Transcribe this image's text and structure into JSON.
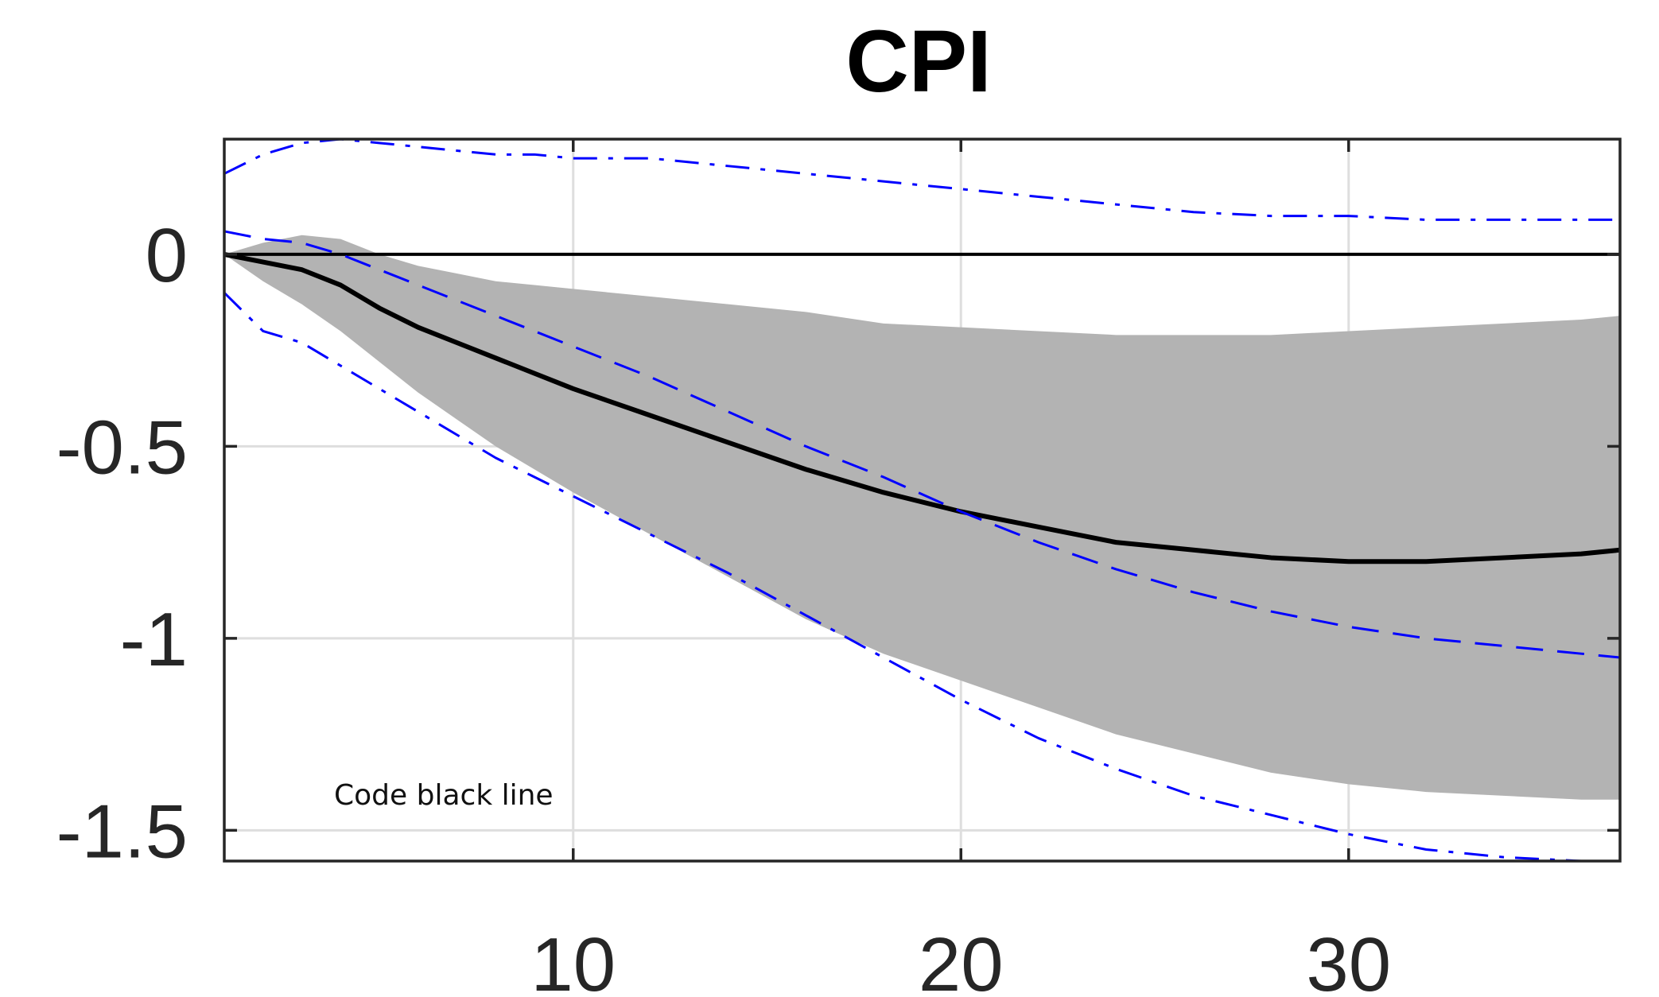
{
  "chart_data": {
    "type": "line",
    "title": "CPI",
    "xlabel": "",
    "ylabel": "",
    "xlim": [
      1,
      37
    ],
    "ylim": [
      -1.58,
      0.3
    ],
    "x_ticks": [
      10,
      20,
      30
    ],
    "y_ticks": [
      0,
      -0.5,
      -1,
      -1.5
    ],
    "x_tick_labels": [
      "10",
      "20",
      "30"
    ],
    "y_tick_labels": [
      "0",
      "-0.5",
      "-1",
      "-1.5"
    ],
    "grid": true,
    "annotation": "Code black line",
    "band": {
      "color": "#b3b3b3",
      "x": [
        1,
        2,
        3,
        4,
        5,
        6,
        7,
        8,
        9,
        10,
        12,
        14,
        16,
        18,
        20,
        22,
        24,
        26,
        28,
        30,
        32,
        34,
        36,
        37
      ],
      "upper": [
        0,
        0.03,
        0.05,
        0.04,
        0.0,
        -0.03,
        -0.05,
        -0.07,
        -0.08,
        -0.09,
        -0.11,
        -0.13,
        -0.15,
        -0.18,
        -0.19,
        -0.2,
        -0.21,
        -0.21,
        -0.21,
        -0.2,
        -0.19,
        -0.18,
        -0.17,
        -0.16
      ],
      "lower": [
        0,
        -0.07,
        -0.13,
        -0.2,
        -0.28,
        -0.36,
        -0.43,
        -0.5,
        -0.56,
        -0.62,
        -0.73,
        -0.84,
        -0.95,
        -1.04,
        -1.11,
        -1.18,
        -1.25,
        -1.3,
        -1.35,
        -1.38,
        -1.4,
        -1.41,
        -1.42,
        -1.42
      ]
    },
    "series": [
      {
        "color": "#000000",
        "style": "solid",
        "x": [
          1,
          2,
          3,
          4,
          5,
          6,
          7,
          8,
          9,
          10,
          12,
          14,
          16,
          18,
          20,
          22,
          24,
          26,
          28,
          30,
          32,
          34,
          36,
          37
        ],
        "values": [
          0,
          -0.02,
          -0.04,
          -0.08,
          -0.14,
          -0.19,
          -0.23,
          -0.27,
          -0.31,
          -0.35,
          -0.42,
          -0.49,
          -0.56,
          -0.62,
          -0.67,
          -0.71,
          -0.75,
          -0.77,
          -0.79,
          -0.8,
          -0.8,
          -0.79,
          -0.78,
          -0.77
        ]
      },
      {
        "color": "#0000ff",
        "style": "dashed",
        "x": [
          1,
          2,
          3,
          4,
          5,
          6,
          7,
          8,
          9,
          10,
          12,
          14,
          16,
          18,
          20,
          22,
          24,
          26,
          28,
          30,
          32,
          34,
          36,
          37
        ],
        "values": [
          0.06,
          0.04,
          0.03,
          0.0,
          -0.04,
          -0.08,
          -0.12,
          -0.16,
          -0.2,
          -0.24,
          -0.32,
          -0.41,
          -0.5,
          -0.58,
          -0.67,
          -0.75,
          -0.82,
          -0.88,
          -0.93,
          -0.97,
          -1.0,
          -1.02,
          -1.04,
          -1.05
        ]
      },
      {
        "color": "#0000ff",
        "style": "dashdot",
        "x": [
          1,
          2,
          3,
          4,
          5,
          6,
          7,
          8,
          9,
          10,
          12,
          14,
          16,
          18,
          20,
          22,
          24,
          26,
          28,
          30,
          32,
          34,
          36,
          37
        ],
        "values": [
          0.21,
          0.26,
          0.29,
          0.3,
          0.29,
          0.28,
          0.27,
          0.26,
          0.26,
          0.25,
          0.25,
          0.23,
          0.21,
          0.19,
          0.17,
          0.15,
          0.13,
          0.11,
          0.1,
          0.1,
          0.09,
          0.09,
          0.09,
          0.09
        ]
      },
      {
        "color": "#0000ff",
        "style": "dashdot",
        "x": [
          1,
          2,
          3,
          4,
          5,
          6,
          7,
          8,
          9,
          10,
          12,
          14,
          16,
          18,
          20,
          22,
          24,
          26,
          28,
          30,
          32,
          34,
          36,
          37
        ],
        "values": [
          -0.1,
          -0.2,
          -0.23,
          -0.29,
          -0.35,
          -0.41,
          -0.47,
          -0.53,
          -0.58,
          -0.63,
          -0.73,
          -0.83,
          -0.94,
          -1.05,
          -1.16,
          -1.26,
          -1.34,
          -1.41,
          -1.46,
          -1.51,
          -1.55,
          -1.57,
          -1.58,
          -1.58
        ]
      }
    ]
  }
}
